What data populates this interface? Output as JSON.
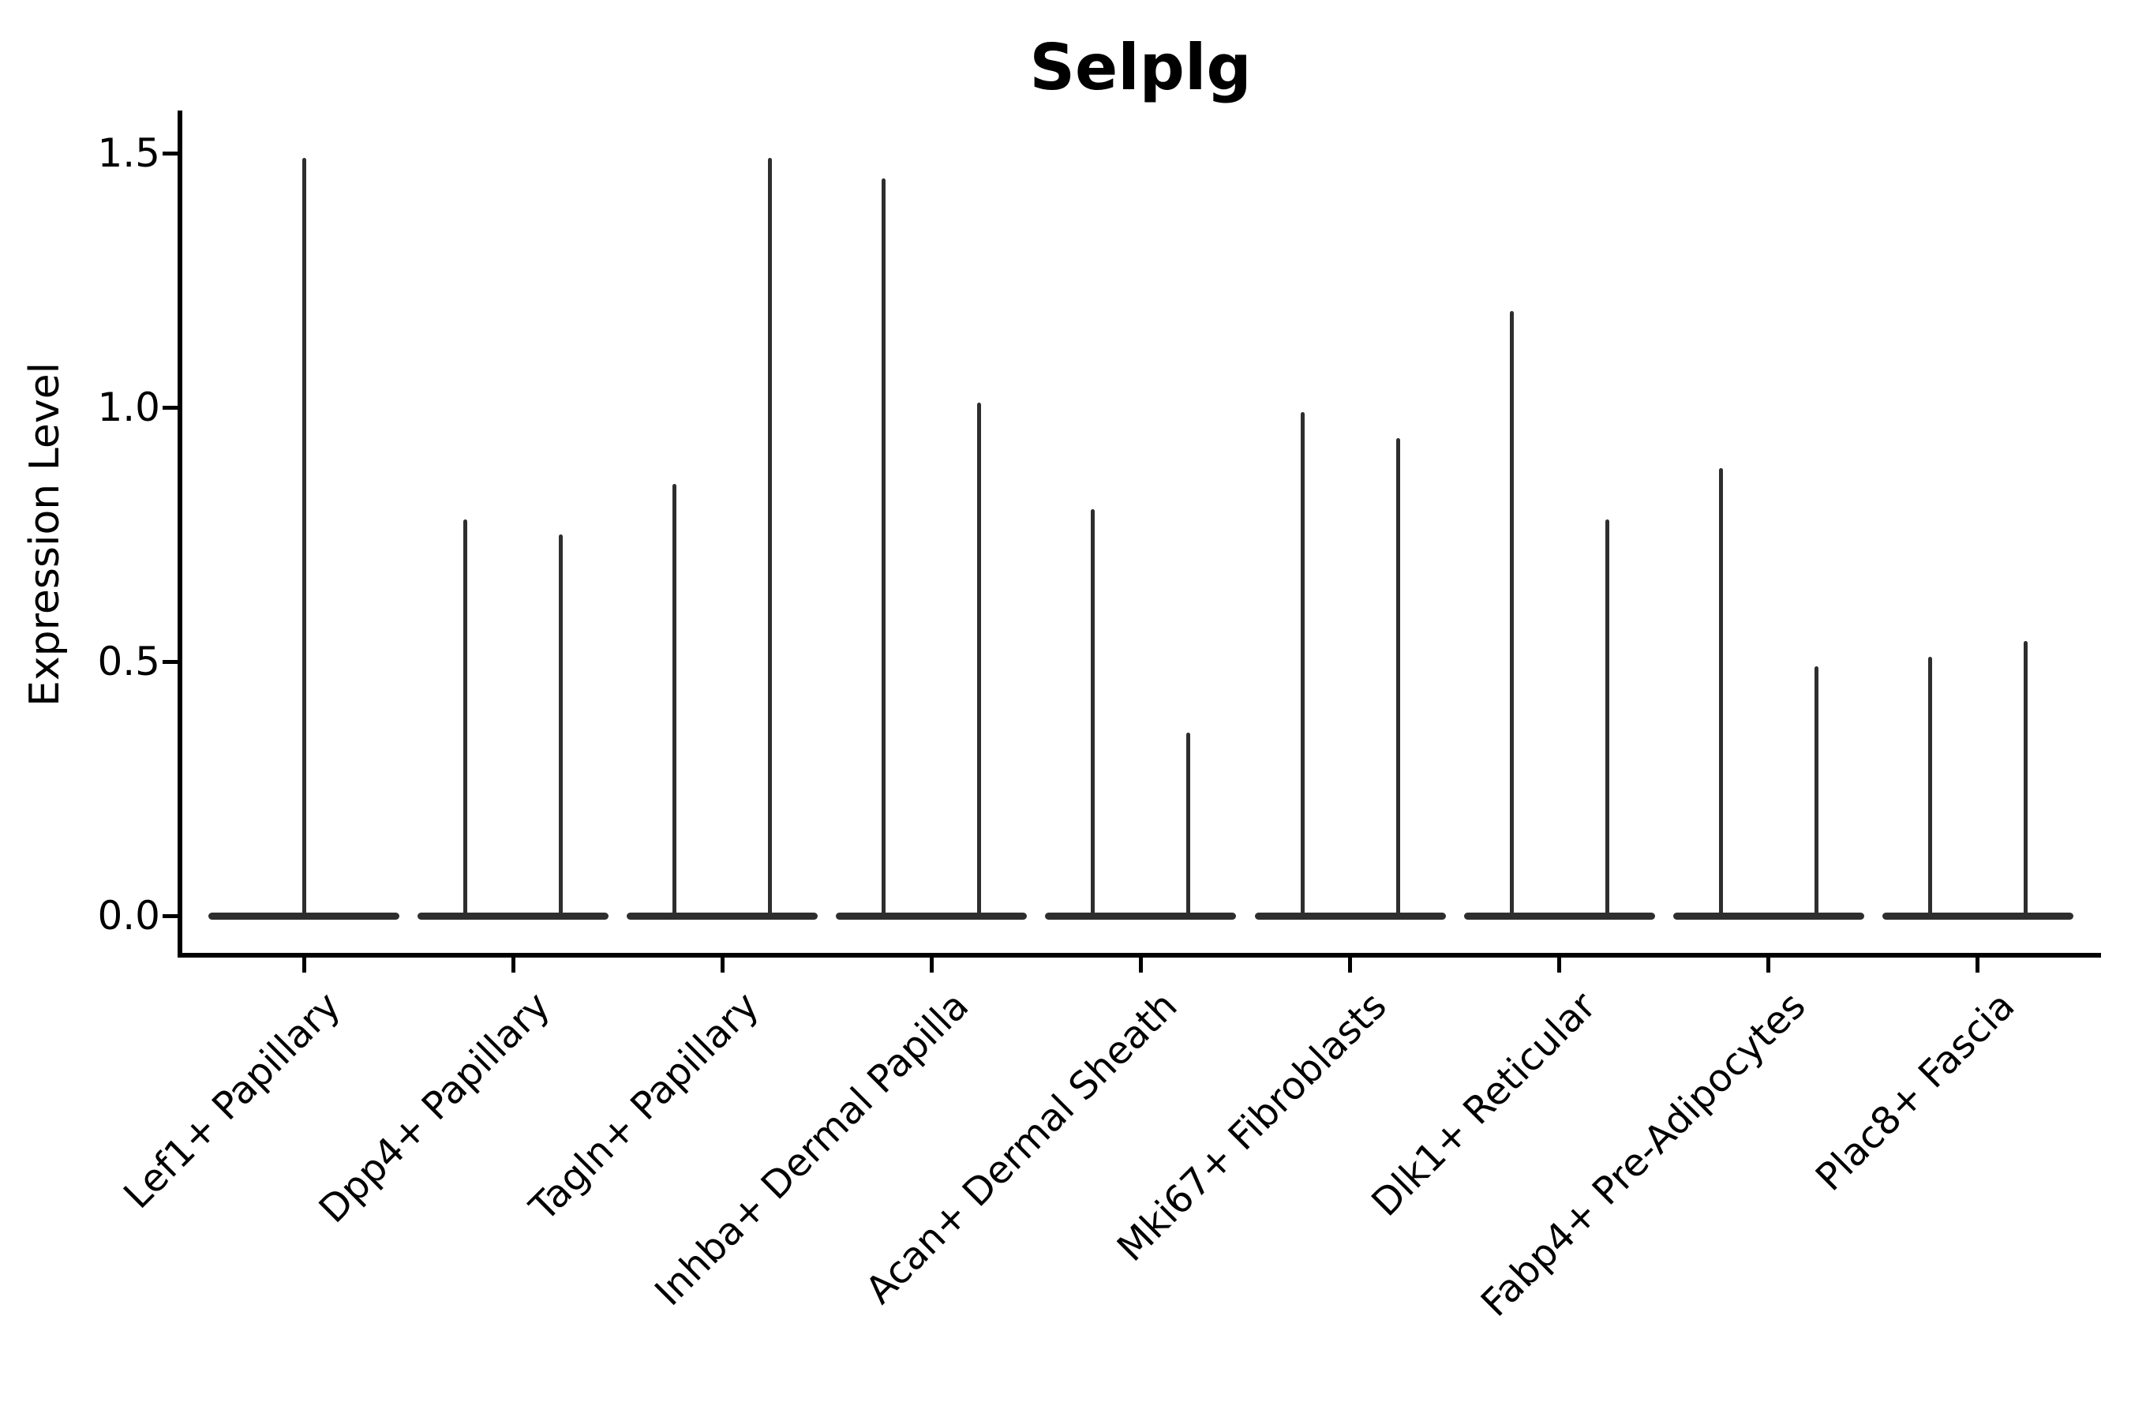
{
  "title": "Selplg",
  "chart_data": {
    "type": "violin",
    "title": "Selplg",
    "xlabel": "",
    "ylabel": "Expression Level",
    "ylim": [
      -0.07,
      1.58
    ],
    "yticks": [
      0.0,
      0.5,
      1.0,
      1.5
    ],
    "ytick_labels": [
      "0.0",
      "0.5",
      "1.0",
      "1.5"
    ],
    "grid": false,
    "legend": false,
    "categories": [
      "Lef1+ Papillary",
      "Dpp4+ Papillary",
      "Tagln+ Papillary",
      "Inhba+ Dermal Papilla",
      "Acan+ Dermal Sheath",
      "Mki67+ Fibroblasts",
      "Dlk1+ Reticular",
      "Fabp4+ Pre-Adipocytes",
      "Plac8+ Fascia"
    ],
    "violins": [
      {
        "category": "Lef1+ Papillary",
        "spikes": [
          {
            "side": "center",
            "max": 1.49
          }
        ]
      },
      {
        "category": "Dpp4+ Papillary",
        "spikes": [
          {
            "side": "left",
            "max": 0.78
          },
          {
            "side": "right",
            "max": 0.75
          }
        ]
      },
      {
        "category": "Tagln+ Papillary",
        "spikes": [
          {
            "side": "left",
            "max": 0.85
          },
          {
            "side": "right",
            "max": 1.49
          }
        ]
      },
      {
        "category": "Inhba+ Dermal Papilla",
        "spikes": [
          {
            "side": "left",
            "max": 1.45
          },
          {
            "side": "right",
            "max": 1.01
          }
        ]
      },
      {
        "category": "Acan+ Dermal Sheath",
        "spikes": [
          {
            "side": "left",
            "max": 0.8
          },
          {
            "side": "right",
            "max": 0.36
          }
        ]
      },
      {
        "category": "Mki67+ Fibroblasts",
        "spikes": [
          {
            "side": "left",
            "max": 0.99
          },
          {
            "side": "right",
            "max": 0.94
          }
        ]
      },
      {
        "category": "Dlk1+ Reticular",
        "spikes": [
          {
            "side": "left",
            "max": 1.19
          },
          {
            "side": "right",
            "max": 0.78
          }
        ]
      },
      {
        "category": "Fabp4+ Pre-Adipocytes",
        "spikes": [
          {
            "side": "left",
            "max": 0.88
          },
          {
            "side": "right",
            "max": 0.49
          }
        ]
      },
      {
        "category": "Plac8+ Fascia",
        "spikes": [
          {
            "side": "left",
            "max": 0.51
          },
          {
            "side": "right",
            "max": 0.54
          }
        ]
      }
    ],
    "colors": {
      "violin": "#2e2e2e",
      "axis": "#000000",
      "background": "#ffffff"
    }
  }
}
